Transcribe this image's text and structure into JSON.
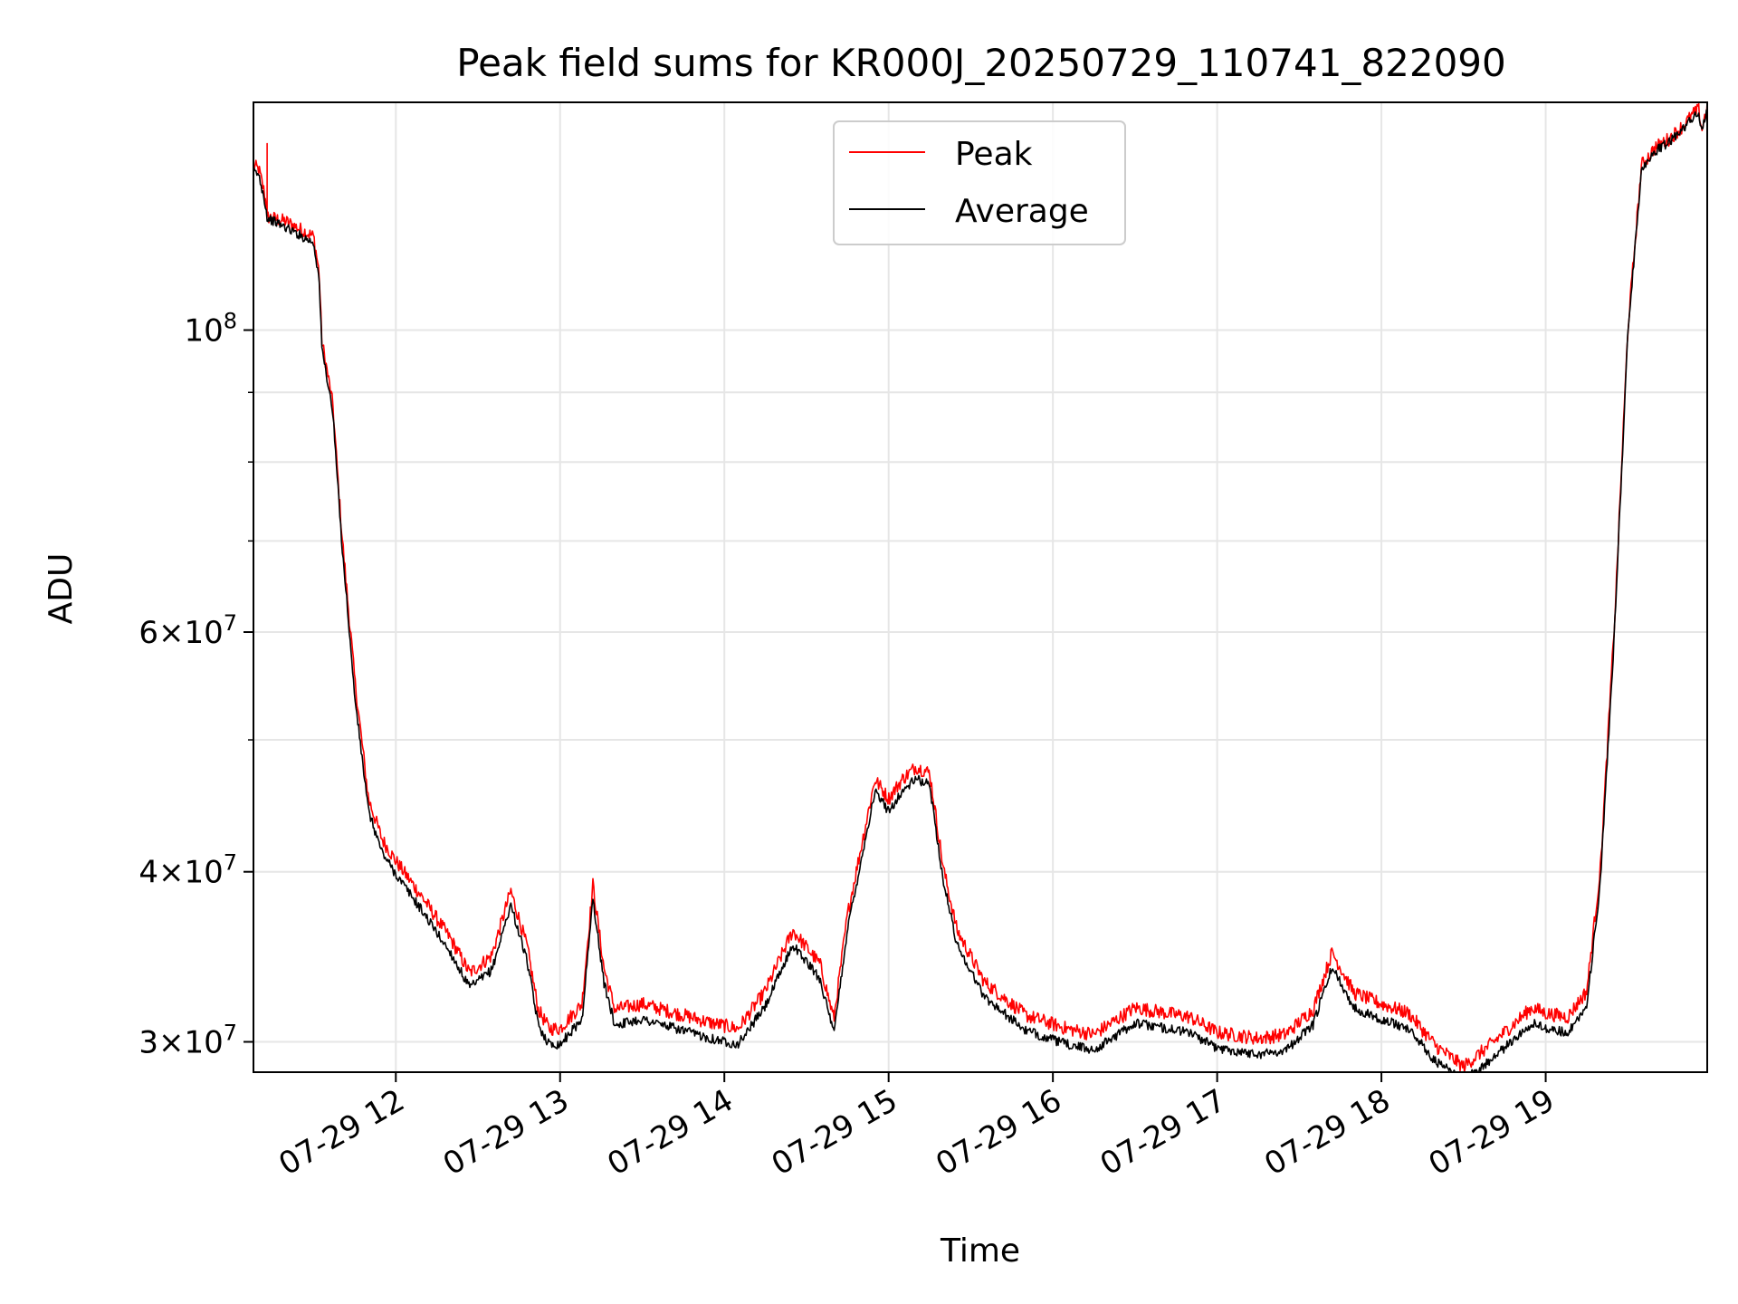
{
  "chart_data": {
    "type": "line",
    "title": "Peak field sums for KR000J_20250729_110741_822090",
    "xlabel": "Time",
    "ylabel": "ADU",
    "x_scale": "time",
    "y_scale": "log",
    "xlim": [
      "2025-07-29 11:08",
      "2025-07-29 19:59"
    ],
    "ylim": [
      28500000,
      147000000
    ],
    "x_ticks": [
      {
        "value": "2025-07-29 12:00",
        "label": "07-29 12"
      },
      {
        "value": "2025-07-29 13:00",
        "label": "07-29 13"
      },
      {
        "value": "2025-07-29 14:00",
        "label": "07-29 14"
      },
      {
        "value": "2025-07-29 15:00",
        "label": "07-29 15"
      },
      {
        "value": "2025-07-29 16:00",
        "label": "07-29 16"
      },
      {
        "value": "2025-07-29 17:00",
        "label": "07-29 17"
      },
      {
        "value": "2025-07-29 18:00",
        "label": "07-29 18"
      },
      {
        "value": "2025-07-29 19:00",
        "label": "07-29 19"
      }
    ],
    "y_major_ticks": [
      {
        "value": 30000000,
        "mantissa": "3",
        "exponent": "7"
      },
      {
        "value": 40000000,
        "mantissa": "4",
        "exponent": "7"
      },
      {
        "value": 60000000,
        "mantissa": "6",
        "exponent": "7"
      },
      {
        "value": 100000000,
        "mantissa": "",
        "exponent": "8"
      }
    ],
    "y_minor_ticks": [
      50000000,
      70000000,
      80000000,
      90000000
    ],
    "grid": true,
    "legend_position": "upper-center",
    "series": [
      {
        "name": "Peak",
        "color": "#ff0000",
        "noise": 0.012,
        "offset": 0.006,
        "x": [
          "2025-07-29 11:08",
          "2025-07-29 11:10",
          "2025-07-29 11:12",
          "2025-07-29 11:13",
          "2025-07-29 11:13",
          "2025-07-29 11:13",
          "2025-07-29 11:20",
          "2025-07-29 11:30",
          "2025-07-29 11:32",
          "2025-07-29 11:33",
          "2025-07-29 11:35",
          "2025-07-29 11:37",
          "2025-07-29 11:40",
          "2025-07-29 11:45",
          "2025-07-29 11:50",
          "2025-07-29 11:55",
          "2025-07-29 12:00",
          "2025-07-29 12:10",
          "2025-07-29 12:20",
          "2025-07-29 12:27",
          "2025-07-29 12:35",
          "2025-07-29 12:42",
          "2025-07-29 12:48",
          "2025-07-29 12:52",
          "2025-07-29 12:56",
          "2025-07-29 13:00",
          "2025-07-29 13:08",
          "2025-07-29 13:12",
          "2025-07-29 13:16",
          "2025-07-29 13:20",
          "2025-07-29 13:30",
          "2025-07-29 13:45",
          "2025-07-29 13:55",
          "2025-07-29 14:05",
          "2025-07-29 14:15",
          "2025-07-29 14:25",
          "2025-07-29 14:35",
          "2025-07-29 14:40",
          "2025-07-29 14:45",
          "2025-07-29 14:55",
          "2025-07-29 15:00",
          "2025-07-29 15:05",
          "2025-07-29 15:10",
          "2025-07-29 15:15",
          "2025-07-29 15:20",
          "2025-07-29 15:25",
          "2025-07-29 15:35",
          "2025-07-29 15:50",
          "2025-07-29 16:05",
          "2025-07-29 16:15",
          "2025-07-29 16:30",
          "2025-07-29 16:50",
          "2025-07-29 17:00",
          "2025-07-29 17:15",
          "2025-07-29 17:25",
          "2025-07-29 17:35",
          "2025-07-29 17:42",
          "2025-07-29 17:50",
          "2025-07-29 18:00",
          "2025-07-29 18:10",
          "2025-07-29 18:20",
          "2025-07-29 18:30",
          "2025-07-29 18:40",
          "2025-07-29 18:55",
          "2025-07-29 19:00",
          "2025-07-29 19:08",
          "2025-07-29 19:15",
          "2025-07-29 19:20",
          "2025-07-29 19:25",
          "2025-07-29 19:30",
          "2025-07-29 19:35",
          "2025-07-29 19:40",
          "2025-07-29 19:45",
          "2025-07-29 19:50",
          "2025-07-29 19:54",
          "2025-07-29 19:56",
          "2025-07-29 19:57",
          "2025-07-29 19:59"
        ],
        "y": [
          132000000,
          131000000,
          126000000,
          122000000,
          136000000,
          121000000,
          120000000,
          117000000,
          110000000,
          98000000,
          93000000,
          88000000,
          72000000,
          55000000,
          45000000,
          42000000,
          40500000,
          38000000,
          35500000,
          33500000,
          34500000,
          38500000,
          35000000,
          31500000,
          30500000,
          30500000,
          31800000,
          38900000,
          33800000,
          31500000,
          31800000,
          31200000,
          30800000,
          30500000,
          32500000,
          36000000,
          34000000,
          31000000,
          37000000,
          46500000,
          45000000,
          46500000,
          47500000,
          47000000,
          40000000,
          36000000,
          33000000,
          31200000,
          30500000,
          30200000,
          31600000,
          31100000,
          30300000,
          30000000,
          30200000,
          31500000,
          34700000,
          32400000,
          31800000,
          31300000,
          29600000,
          28600000,
          29700000,
          31600000,
          31300000,
          31100000,
          32500000,
          40000000,
          60000000,
          100000000,
          132000000,
          136000000,
          138000000,
          141000000,
          144000000,
          145000000,
          140000000,
          146000000
        ]
      },
      {
        "name": "Average",
        "color": "#000000",
        "noise": 0.008,
        "offset": -0.004,
        "x": [
          "2025-07-29 11:08",
          "2025-07-29 11:10",
          "2025-07-29 11:12",
          "2025-07-29 11:13",
          "2025-07-29 11:20",
          "2025-07-29 11:30",
          "2025-07-29 11:32",
          "2025-07-29 11:33",
          "2025-07-29 11:35",
          "2025-07-29 11:37",
          "2025-07-29 11:40",
          "2025-07-29 11:45",
          "2025-07-29 11:50",
          "2025-07-29 11:55",
          "2025-07-29 12:00",
          "2025-07-29 12:10",
          "2025-07-29 12:20",
          "2025-07-29 12:27",
          "2025-07-29 12:35",
          "2025-07-29 12:42",
          "2025-07-29 12:48",
          "2025-07-29 12:52",
          "2025-07-29 12:56",
          "2025-07-29 13:00",
          "2025-07-29 13:08",
          "2025-07-29 13:12",
          "2025-07-29 13:16",
          "2025-07-29 13:20",
          "2025-07-29 13:30",
          "2025-07-29 13:45",
          "2025-07-29 13:55",
          "2025-07-29 14:05",
          "2025-07-29 14:15",
          "2025-07-29 14:25",
          "2025-07-29 14:35",
          "2025-07-29 14:40",
          "2025-07-29 14:45",
          "2025-07-29 14:55",
          "2025-07-29 15:00",
          "2025-07-29 15:05",
          "2025-07-29 15:10",
          "2025-07-29 15:15",
          "2025-07-29 15:20",
          "2025-07-29 15:25",
          "2025-07-29 15:35",
          "2025-07-29 15:50",
          "2025-07-29 16:05",
          "2025-07-29 16:15",
          "2025-07-29 16:30",
          "2025-07-29 16:50",
          "2025-07-29 17:00",
          "2025-07-29 17:15",
          "2025-07-29 17:25",
          "2025-07-29 17:35",
          "2025-07-29 17:42",
          "2025-07-29 17:50",
          "2025-07-29 18:00",
          "2025-07-29 18:10",
          "2025-07-29 18:20",
          "2025-07-29 18:30",
          "2025-07-29 18:40",
          "2025-07-29 18:55",
          "2025-07-29 19:00",
          "2025-07-29 19:08",
          "2025-07-29 19:15",
          "2025-07-29 19:20",
          "2025-07-29 19:25",
          "2025-07-29 19:30",
          "2025-07-29 19:35",
          "2025-07-29 19:40",
          "2025-07-29 19:45",
          "2025-07-29 19:50",
          "2025-07-29 19:54",
          "2025-07-29 19:56",
          "2025-07-29 19:57",
          "2025-07-29 19:59"
        ],
        "y": [
          131000000,
          130000000,
          125000000,
          121000000,
          119000000,
          116000000,
          109000000,
          97000000,
          92000000,
          87000000,
          71000000,
          54000000,
          44500000,
          41500000,
          40000000,
          37500000,
          35000000,
          33000000,
          34000000,
          38000000,
          34500000,
          31000000,
          30000000,
          30000000,
          31300000,
          38400000,
          33300000,
          31000000,
          31300000,
          30700000,
          30300000,
          30000000,
          32000000,
          35500000,
          33500000,
          30500000,
          36500000,
          46000000,
          44500000,
          46000000,
          47000000,
          46500000,
          39500000,
          35500000,
          32500000,
          30700000,
          30000000,
          29700000,
          31100000,
          30600000,
          29800000,
          29500000,
          29700000,
          31000000,
          34200000,
          31900000,
          31300000,
          30800000,
          29100000,
          28300000,
          29200000,
          31100000,
          30800000,
          30600000,
          32000000,
          39500000,
          59500000,
          99500000,
          131500000,
          135500000,
          137500000,
          140500000,
          143500000,
          144500000,
          139500000,
          145500000
        ]
      }
    ]
  }
}
